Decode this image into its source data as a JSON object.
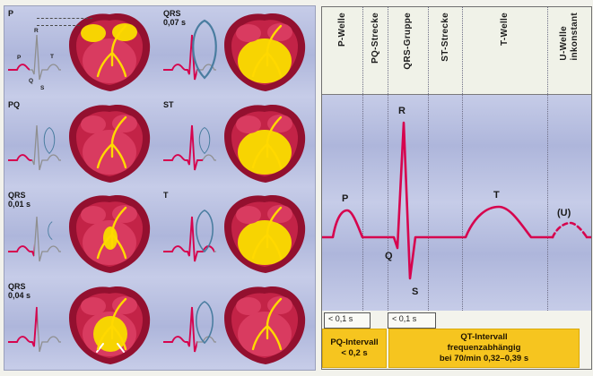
{
  "left_panel": {
    "cells": [
      {
        "id": "p",
        "label": "P",
        "sub": "",
        "progress": 0.42,
        "atria": true,
        "ventricles": "none",
        "loop": "none"
      },
      {
        "id": "qrs-007",
        "label": "QRS",
        "sub": "0,07 s",
        "progress": 0.64,
        "atria": false,
        "ventricles": "full",
        "loop": "large"
      },
      {
        "id": "pq",
        "label": "PQ",
        "sub": "",
        "progress": 0.46,
        "atria": false,
        "ventricles": "none",
        "loop": "small"
      },
      {
        "id": "st",
        "label": "ST",
        "sub": "",
        "progress": 0.74,
        "atria": false,
        "ventricles": "full",
        "loop": "small"
      },
      {
        "id": "qrs-001",
        "label": "QRS",
        "sub": "0,01 s",
        "progress": 0.5,
        "atria": false,
        "ventricles": "start",
        "loop": "arc"
      },
      {
        "id": "t",
        "label": "T",
        "sub": "",
        "progress": 0.95,
        "atria": false,
        "ventricles": "full",
        "loop": "medium"
      },
      {
        "id": "qrs-004",
        "label": "QRS",
        "sub": "0,04 s",
        "progress": 0.56,
        "atria": false,
        "ventricles": "partial",
        "loop": "none"
      },
      {
        "id": "rest",
        "label": "",
        "sub": "",
        "progress": 0.64,
        "atria": false,
        "ventricles": "none",
        "loop": "medium"
      }
    ],
    "ecg_letters": {
      "p": "P",
      "q": "Q",
      "r": "R",
      "s": "S",
      "t": "T"
    }
  },
  "right_panel": {
    "columns": [
      {
        "label": "P-Welle"
      },
      {
        "label": "PQ-Strecke"
      },
      {
        "label": "QRS-Gruppe"
      },
      {
        "label": "ST-Strecke"
      },
      {
        "label": "T-Welle"
      },
      {
        "label": "U-Welle",
        "label2": "inkonstant"
      }
    ],
    "wave_labels": {
      "p": "P",
      "q": "Q",
      "r": "R",
      "s": "S",
      "t": "T",
      "u": "(U)"
    },
    "durations": {
      "p_wave": "< 0,1 s",
      "qrs": "< 0,1 s"
    },
    "pq_box": {
      "line1": "PQ-Intervall",
      "line2": "< 0,2 s"
    },
    "qt_box": {
      "line1": "QT-Intervall",
      "line2": "frequenzabhängig",
      "line3": "bei 70/min  0,32–0,39 s"
    }
  },
  "colors": {
    "ecg_red": "#d6044e",
    "trace_grey": "#8f8f8f",
    "heart_outer": "#93102f",
    "heart_body": "#c32347",
    "heart_chamber": "#d93b60",
    "excited_yellow": "#f7d402",
    "conduction_yellow": "#ffd900",
    "loop_blue": "#4a7da0",
    "interval_yellow": "#f6c51f",
    "band_light": "#c6cce8",
    "band_dark": "#aeb6db"
  }
}
